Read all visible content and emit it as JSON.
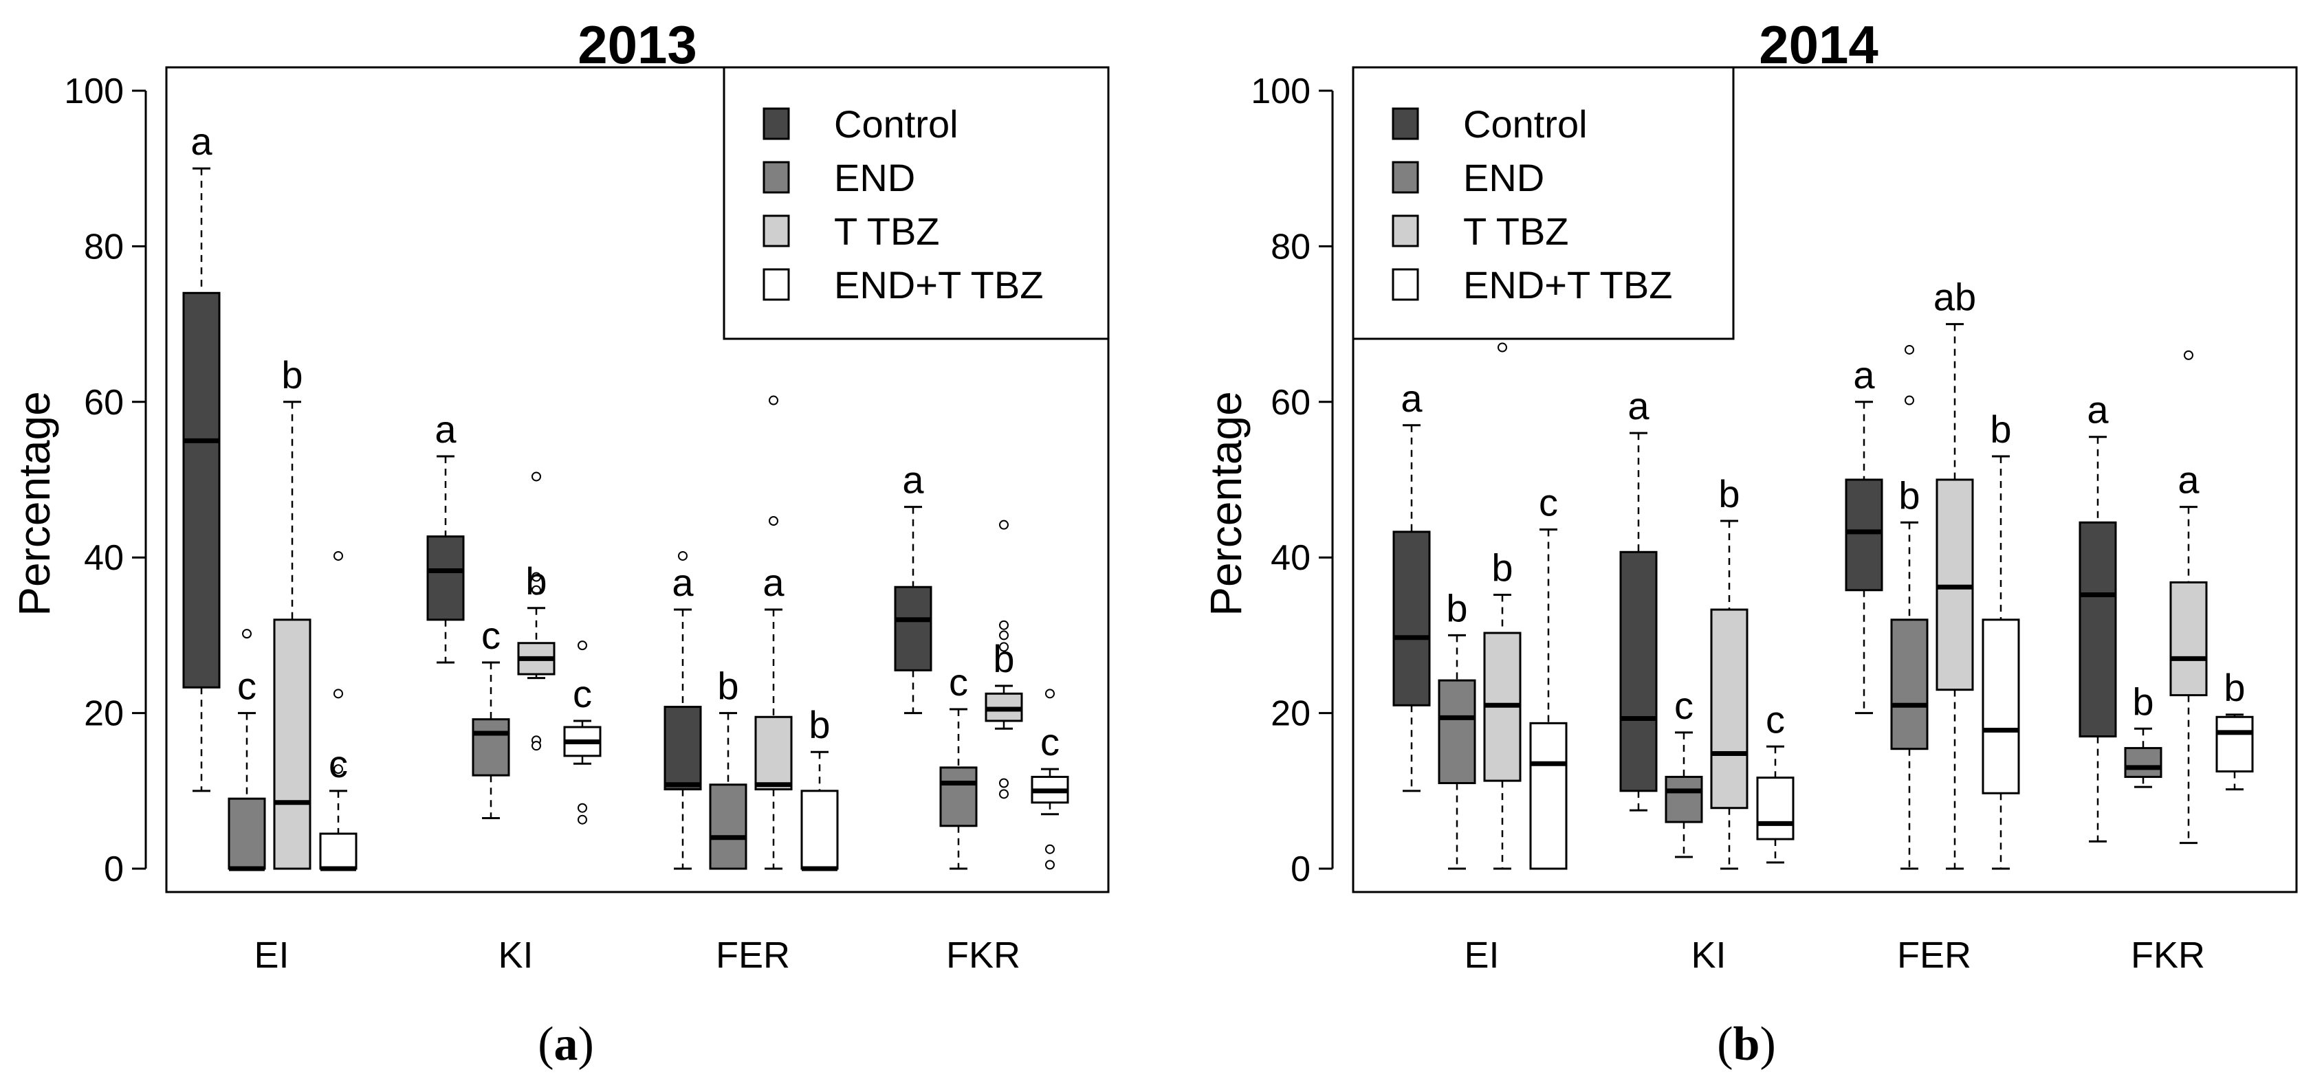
{
  "chart_data": [
    {
      "type": "box",
      "title": "2013",
      "panel_label": "a",
      "ylabel": "Percentage",
      "ylim": [
        -3,
        103
      ],
      "yticks": [
        0,
        20,
        40,
        60,
        80,
        100
      ],
      "categories": [
        "EI",
        "KI",
        "FER",
        "FKR"
      ],
      "legend": {
        "placement": "top-right",
        "entries": [
          "Control",
          "END",
          "T TBZ",
          "END+T TBZ"
        ]
      },
      "series": [
        {
          "name": "Control",
          "color": "#474747",
          "boxes": [
            {
              "min": 10,
              "q1": 23.3,
              "median": 55,
              "q3": 74,
              "max": 90,
              "outliers": [],
              "letter": "a"
            },
            {
              "min": 26.5,
              "q1": 32,
              "median": 38.3,
              "q3": 42.7,
              "max": 53,
              "outliers": [],
              "letter": "a"
            },
            {
              "min": 0,
              "q1": 10.2,
              "median": 10.8,
              "q3": 20.8,
              "max": 33.3,
              "outliers": [
                40.2
              ],
              "letter": "a"
            },
            {
              "min": 20,
              "q1": 25.5,
              "median": 32,
              "q3": 36.2,
              "max": 46.5,
              "outliers": [],
              "letter": "a"
            }
          ]
        },
        {
          "name": "END",
          "color": "#808080",
          "boxes": [
            {
              "min": 0,
              "q1": 0,
              "median": 0,
              "q3": 9,
              "max": 20,
              "outliers": [
                30.2
              ],
              "letter": "c"
            },
            {
              "min": 6.5,
              "q1": 12,
              "median": 17.4,
              "q3": 19.2,
              "max": 26.5,
              "outliers": [],
              "letter": "c"
            },
            {
              "min": 0,
              "q1": 0,
              "median": 4,
              "q3": 10.8,
              "max": 20,
              "outliers": [],
              "letter": "b"
            },
            {
              "min": 0,
              "q1": 5.5,
              "median": 11,
              "q3": 13,
              "max": 20.5,
              "outliers": [],
              "letter": "c"
            }
          ]
        },
        {
          "name": "T TBZ",
          "color": "#cfcfcf",
          "boxes": [
            {
              "min": 0,
              "q1": 0,
              "median": 8.5,
              "q3": 32,
              "max": 60,
              "outliers": [],
              "letter": "b"
            },
            {
              "min": 24.5,
              "q1": 25,
              "median": 27,
              "q3": 29,
              "max": 33.5,
              "outliers": [
                50.4,
                37.5,
                35.8,
                16.5,
                15.8
              ],
              "letter": "b"
            },
            {
              "min": 0,
              "q1": 10.2,
              "median": 10.8,
              "q3": 19.5,
              "max": 33.3,
              "outliers": [
                60.2,
                44.7
              ],
              "letter": "a"
            },
            {
              "min": 18,
              "q1": 19,
              "median": 20.5,
              "q3": 22.5,
              "max": 23.5,
              "outliers": [
                44.2,
                31.3,
                30,
                28.5,
                11,
                9.6
              ],
              "letter": "b"
            }
          ]
        },
        {
          "name": "END+T TBZ",
          "color": "#ffffff",
          "boxes": [
            {
              "min": 0,
              "q1": 0,
              "median": 0,
              "q3": 4.5,
              "max": 10,
              "outliers": [
                40.2,
                22.5,
                12.8
              ],
              "letter": "c"
            },
            {
              "min": 13.5,
              "q1": 14.5,
              "median": 16.3,
              "q3": 18.2,
              "max": 19,
              "outliers": [
                28.7,
                7.8,
                6.3
              ],
              "letter": "c"
            },
            {
              "min": 0,
              "q1": 0,
              "median": 0,
              "q3": 10,
              "max": 15,
              "outliers": [],
              "letter": "b"
            },
            {
              "min": 7,
              "q1": 8.5,
              "median": 10,
              "q3": 11.8,
              "max": 12.8,
              "outliers": [
                22.5,
                2.5,
                0.5
              ],
              "letter": "c"
            }
          ]
        }
      ]
    },
    {
      "type": "box",
      "title": "2014",
      "panel_label": "b",
      "ylabel": "Percentage",
      "ylim": [
        -3,
        103
      ],
      "yticks": [
        0,
        20,
        40,
        60,
        80,
        100
      ],
      "categories": [
        "EI",
        "KI",
        "FER",
        "FKR"
      ],
      "legend": {
        "placement": "top-left",
        "entries": [
          "Control",
          "END",
          "T TBZ",
          "END+T TBZ"
        ]
      },
      "series": [
        {
          "name": "Control",
          "color": "#474747",
          "boxes": [
            {
              "min": 10,
              "q1": 21,
              "median": 29.7,
              "q3": 43.3,
              "max": 57,
              "outliers": [],
              "letter": "a"
            },
            {
              "min": 7.5,
              "q1": 10,
              "median": 19.3,
              "q3": 40.7,
              "max": 56,
              "outliers": [],
              "letter": "a"
            },
            {
              "min": 20,
              "q1": 35.8,
              "median": 43.3,
              "q3": 50,
              "max": 60,
              "outliers": [],
              "letter": "a"
            },
            {
              "min": 3.5,
              "q1": 17,
              "median": 35.2,
              "q3": 44.5,
              "max": 55.5,
              "outliers": [],
              "letter": "a"
            }
          ]
        },
        {
          "name": "END",
          "color": "#808080",
          "boxes": [
            {
              "min": 0,
              "q1": 11,
              "median": 19.4,
              "q3": 24.2,
              "max": 30,
              "outliers": [],
              "letter": "b"
            },
            {
              "min": 1.5,
              "q1": 6,
              "median": 10,
              "q3": 11.8,
              "max": 17.5,
              "outliers": [],
              "letter": "c"
            },
            {
              "min": 0,
              "q1": 15.4,
              "median": 21,
              "q3": 32,
              "max": 44.5,
              "outliers": [
                66.7,
                60.2
              ],
              "letter": "b"
            },
            {
              "min": 10.5,
              "q1": 11.8,
              "median": 13,
              "q3": 15.5,
              "max": 18,
              "outliers": [],
              "letter": "b"
            }
          ]
        },
        {
          "name": "T TBZ",
          "color": "#cfcfcf",
          "boxes": [
            {
              "min": 0,
              "q1": 11.3,
              "median": 21,
              "q3": 30.3,
              "max": 35.2,
              "outliers": [
                67
              ],
              "letter": "b"
            },
            {
              "min": 0,
              "q1": 7.8,
              "median": 14.8,
              "q3": 33.3,
              "max": 44.7,
              "outliers": [],
              "letter": "b"
            },
            {
              "min": 0,
              "q1": 23,
              "median": 36.2,
              "q3": 50,
              "max": 70,
              "outliers": [],
              "letter": "ab"
            },
            {
              "min": 3.3,
              "q1": 22.3,
              "median": 27,
              "q3": 36.8,
              "max": 46.5,
              "outliers": [
                66
              ],
              "letter": "a"
            }
          ]
        },
        {
          "name": "END+T TBZ",
          "color": "#ffffff",
          "boxes": [
            {
              "min": 0,
              "q1": 0,
              "median": 13.5,
              "q3": 18.7,
              "max": 43.6,
              "outliers": [],
              "letter": "c"
            },
            {
              "min": 0.8,
              "q1": 3.8,
              "median": 5.8,
              "q3": 11.7,
              "max": 15.7,
              "outliers": [],
              "letter": "c"
            },
            {
              "min": 0,
              "q1": 9.7,
              "median": 17.8,
              "q3": 32,
              "max": 53,
              "outliers": [],
              "letter": "b"
            },
            {
              "min": 10.2,
              "q1": 12.5,
              "median": 17.5,
              "q3": 19.5,
              "max": 19.8,
              "outliers": [],
              "letter": "b"
            }
          ]
        }
      ]
    }
  ]
}
